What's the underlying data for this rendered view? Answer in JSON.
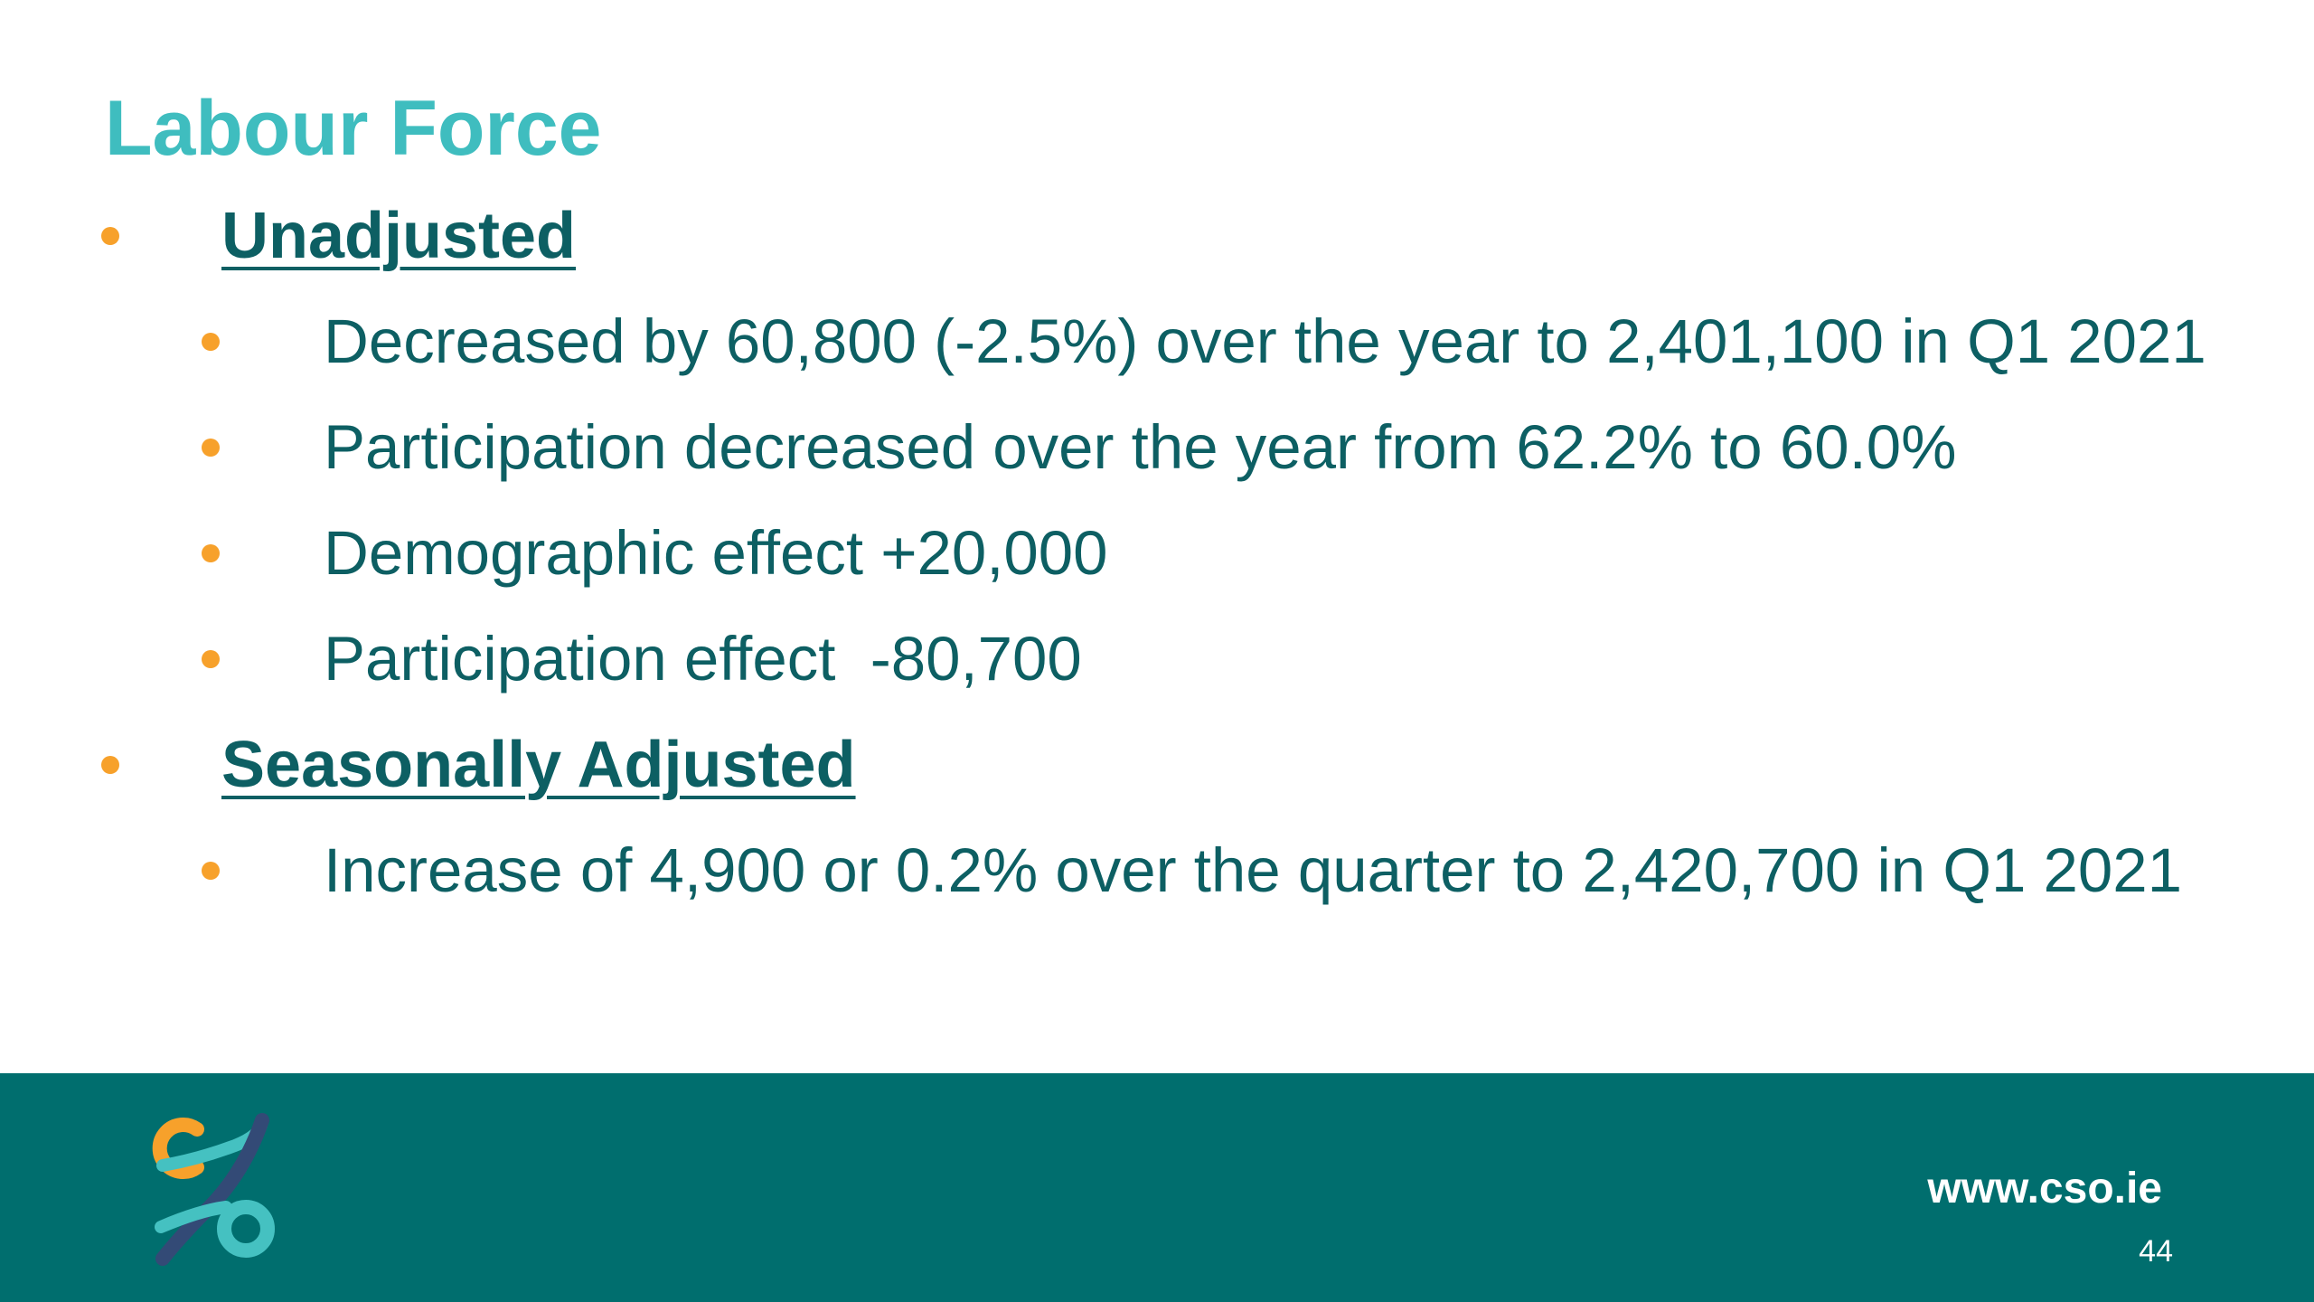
{
  "title": "Labour Force",
  "sections": [
    {
      "heading": "Unadjusted",
      "items": [
        "Decreased by 60,800 (-2.5%) over the year to 2,401,100 in Q1 2021",
        "Participation decreased over the year from 62.2% to 60.0%",
        "Demographic effect +20,000",
        "Participation effect  -80,700"
      ]
    },
    {
      "heading": "Seasonally Adjusted",
      "items": [
        "Increase of 4,900 or 0.2% over the quarter to 2,420,700 in Q1 2021"
      ]
    }
  ],
  "footer": {
    "url": "www.cso.ie",
    "page_number": "44"
  }
}
